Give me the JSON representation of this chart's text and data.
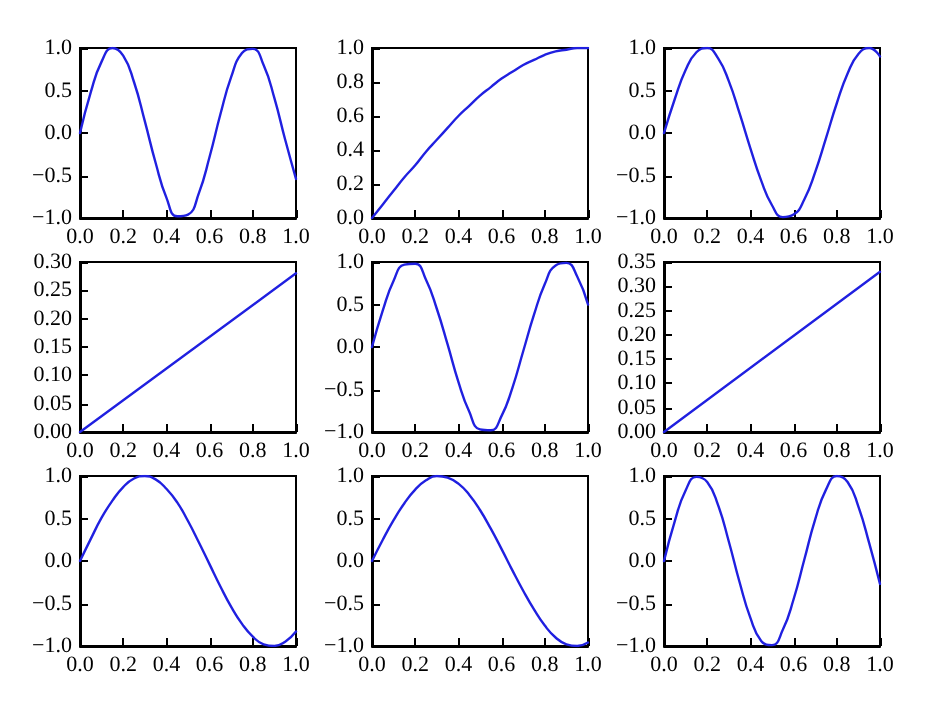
{
  "chart_data": [
    {
      "type": "line",
      "x": [
        0,
        0.05,
        0.1,
        0.15,
        0.2,
        0.25,
        0.3,
        0.35,
        0.4,
        0.45,
        0.5,
        0.55,
        0.6,
        0.65,
        0.7,
        0.75,
        0.8,
        0.85,
        0.9,
        0.95,
        1.0
      ],
      "values": [
        0,
        0.48,
        0.84,
        1.0,
        0.91,
        0.6,
        0.14,
        -0.35,
        -0.76,
        -0.98,
        -0.96,
        -0.71,
        -0.28,
        0.22,
        0.66,
        0.94,
        0.99,
        0.8,
        0.41,
        -0.08,
        -0.54
      ],
      "color": "#2020e0",
      "xlim": [
        0,
        1
      ],
      "ylim": [
        -1,
        1
      ],
      "xticks": [
        {
          "value": 0,
          "label": "0.0"
        },
        {
          "value": 0.2,
          "label": "0.2"
        },
        {
          "value": 0.4,
          "label": "0.4"
        },
        {
          "value": 0.6,
          "label": "0.6"
        },
        {
          "value": 0.8,
          "label": "0.8"
        },
        {
          "value": 1,
          "label": "1.0"
        }
      ],
      "yticks": [
        {
          "value": -1,
          "label": "−1.0"
        },
        {
          "value": -0.5,
          "label": "−0.5"
        },
        {
          "value": 0,
          "label": "0.0"
        },
        {
          "value": 0.5,
          "label": "0.5"
        },
        {
          "value": 1,
          "label": "1.0"
        }
      ],
      "grid": false
    },
    {
      "type": "line",
      "x": [
        0,
        0.05,
        0.1,
        0.15,
        0.2,
        0.25,
        0.3,
        0.35,
        0.4,
        0.45,
        0.5,
        0.55,
        0.6,
        0.65,
        0.7,
        0.75,
        0.8,
        0.85,
        0.9,
        0.95,
        1.0
      ],
      "values": [
        0,
        0.08,
        0.16,
        0.24,
        0.31,
        0.39,
        0.46,
        0.53,
        0.6,
        0.66,
        0.72,
        0.77,
        0.82,
        0.86,
        0.9,
        0.93,
        0.96,
        0.98,
        0.99,
        1.0,
        1.0
      ],
      "color": "#2020e0",
      "xlim": [
        0,
        1
      ],
      "ylim": [
        0,
        1
      ],
      "xticks": [
        {
          "value": 0,
          "label": "0.0"
        },
        {
          "value": 0.2,
          "label": "0.2"
        },
        {
          "value": 0.4,
          "label": "0.4"
        },
        {
          "value": 0.6,
          "label": "0.6"
        },
        {
          "value": 0.8,
          "label": "0.8"
        },
        {
          "value": 1,
          "label": "1.0"
        }
      ],
      "yticks": [
        {
          "value": 0,
          "label": "0.0"
        },
        {
          "value": 0.2,
          "label": "0.2"
        },
        {
          "value": 0.4,
          "label": "0.4"
        },
        {
          "value": 0.6,
          "label": "0.6"
        },
        {
          "value": 0.8,
          "label": "0.8"
        },
        {
          "value": 1,
          "label": "1.0"
        }
      ],
      "grid": false
    },
    {
      "type": "line",
      "x": [
        0,
        0.05,
        0.1,
        0.15,
        0.2,
        0.25,
        0.3,
        0.35,
        0.4,
        0.45,
        0.5,
        0.55,
        0.6,
        0.65,
        0.7,
        0.75,
        0.8,
        0.85,
        0.9,
        0.95,
        1.0
      ],
      "values": [
        0,
        0.4,
        0.74,
        0.95,
        1.0,
        0.88,
        0.61,
        0.23,
        -0.18,
        -0.56,
        -0.85,
        -0.99,
        -0.96,
        -0.78,
        -0.46,
        -0.06,
        0.35,
        0.7,
        0.93,
        1.0,
        0.9
      ],
      "color": "#2020e0",
      "xlim": [
        0,
        1
      ],
      "ylim": [
        -1,
        1
      ],
      "xticks": [
        {
          "value": 0,
          "label": "0.0"
        },
        {
          "value": 0.2,
          "label": "0.2"
        },
        {
          "value": 0.4,
          "label": "0.4"
        },
        {
          "value": 0.6,
          "label": "0.6"
        },
        {
          "value": 0.8,
          "label": "0.8"
        },
        {
          "value": 1,
          "label": "1.0"
        }
      ],
      "yticks": [
        {
          "value": -1,
          "label": "−1.0"
        },
        {
          "value": -0.5,
          "label": "−0.5"
        },
        {
          "value": 0,
          "label": "0.0"
        },
        {
          "value": 0.5,
          "label": "0.5"
        },
        {
          "value": 1,
          "label": "1.0"
        }
      ],
      "grid": false
    },
    {
      "type": "line",
      "x": [
        0,
        1
      ],
      "values": [
        0,
        0.28
      ],
      "color": "#2020e0",
      "xlim": [
        0,
        1
      ],
      "ylim": [
        0,
        0.3
      ],
      "xticks": [
        {
          "value": 0,
          "label": "0.0"
        },
        {
          "value": 0.2,
          "label": "0.2"
        },
        {
          "value": 0.4,
          "label": "0.4"
        },
        {
          "value": 0.6,
          "label": "0.6"
        },
        {
          "value": 0.8,
          "label": "0.8"
        },
        {
          "value": 1,
          "label": "1.0"
        }
      ],
      "yticks": [
        {
          "value": 0,
          "label": "0.00"
        },
        0.05,
        {
          "value": 0.1,
          "label": "0.10"
        },
        0.15,
        {
          "value": 0.2,
          "label": "0.20"
        },
        0.25,
        {
          "value": 0.3,
          "label": "0.30"
        }
      ],
      "grid": false
    },
    {
      "type": "line",
      "x": [
        0,
        0.05,
        0.1,
        0.15,
        0.2,
        0.25,
        0.3,
        0.35,
        0.4,
        0.45,
        0.5,
        0.55,
        0.6,
        0.65,
        0.7,
        0.75,
        0.8,
        0.85,
        0.9,
        0.95,
        1.0
      ],
      "values": [
        0,
        0.43,
        0.78,
        0.97,
        0.98,
        0.79,
        0.45,
        0.03,
        -0.41,
        -0.76,
        -0.97,
        -0.98,
        -0.81,
        -0.48,
        -0.05,
        0.38,
        0.74,
        0.96,
        0.99,
        0.83,
        0.5
      ],
      "color": "#2020e0",
      "xlim": [
        0,
        1
      ],
      "ylim": [
        -1,
        1
      ],
      "xticks": [
        {
          "value": 0,
          "label": "0.0"
        },
        {
          "value": 0.2,
          "label": "0.2"
        },
        {
          "value": 0.4,
          "label": "0.4"
        },
        {
          "value": 0.6,
          "label": "0.6"
        },
        {
          "value": 0.8,
          "label": "0.8"
        },
        {
          "value": 1,
          "label": "1.0"
        }
      ],
      "yticks": [
        {
          "value": -1,
          "label": "−1.0"
        },
        {
          "value": -0.5,
          "label": "−0.5"
        },
        {
          "value": 0,
          "label": "0.0"
        },
        {
          "value": 0.5,
          "label": "0.5"
        },
        {
          "value": 1,
          "label": "1.0"
        }
      ],
      "grid": false
    },
    {
      "type": "line",
      "x": [
        0,
        1
      ],
      "values": [
        0,
        0.33
      ],
      "color": "#2020e0",
      "xlim": [
        0,
        1
      ],
      "ylim": [
        0,
        0.35
      ],
      "xticks": [
        {
          "value": 0,
          "label": "0.0"
        },
        {
          "value": 0.2,
          "label": "0.2"
        },
        {
          "value": 0.4,
          "label": "0.4"
        },
        {
          "value": 0.6,
          "label": "0.6"
        },
        {
          "value": 0.8,
          "label": "0.8"
        },
        {
          "value": 1,
          "label": "1.0"
        }
      ],
      "yticks": [
        {
          "value": 0,
          "label": "0.00"
        },
        0.05,
        {
          "value": 0.1,
          "label": "0.10"
        },
        0.15,
        {
          "value": 0.2,
          "label": "0.20"
        },
        0.25,
        {
          "value": 0.3,
          "label": "0.30"
        },
        0.35
      ],
      "grid": false
    },
    {
      "type": "line",
      "x": [
        0,
        0.05,
        0.1,
        0.15,
        0.2,
        0.25,
        0.3,
        0.35,
        0.4,
        0.45,
        0.5,
        0.55,
        0.6,
        0.65,
        0.7,
        0.75,
        0.8,
        0.85,
        0.9,
        0.95,
        1.0
      ],
      "values": [
        0,
        0.26,
        0.51,
        0.71,
        0.87,
        0.97,
        1.0,
        0.96,
        0.85,
        0.69,
        0.47,
        0.22,
        -0.04,
        -0.3,
        -0.54,
        -0.74,
        -0.89,
        -0.98,
        -1.0,
        -0.95,
        -0.83
      ],
      "color": "#2020e0",
      "xlim": [
        0,
        1
      ],
      "ylim": [
        -1,
        1
      ],
      "xticks": [
        {
          "value": 0,
          "label": "0.0"
        },
        {
          "value": 0.2,
          "label": "0.2"
        },
        {
          "value": 0.4,
          "label": "0.4"
        },
        {
          "value": 0.6,
          "label": "0.6"
        },
        {
          "value": 0.8,
          "label": "0.8"
        },
        {
          "value": 1,
          "label": "1.0"
        }
      ],
      "yticks": [
        {
          "value": -1,
          "label": "−1.0"
        },
        {
          "value": -0.5,
          "label": "−0.5"
        },
        {
          "value": 0,
          "label": "0.0"
        },
        {
          "value": 0.5,
          "label": "0.5"
        },
        {
          "value": 1,
          "label": "1.0"
        }
      ],
      "grid": false
    },
    {
      "type": "line",
      "x": [
        0,
        0.05,
        0.1,
        0.15,
        0.2,
        0.25,
        0.3,
        0.35,
        0.4,
        0.45,
        0.5,
        0.55,
        0.6,
        0.65,
        0.7,
        0.75,
        0.8,
        0.85,
        0.9,
        0.95,
        1.0
      ],
      "values": [
        0,
        0.25,
        0.48,
        0.68,
        0.84,
        0.95,
        1.0,
        0.98,
        0.91,
        0.78,
        0.6,
        0.38,
        0.14,
        -0.11,
        -0.35,
        -0.57,
        -0.76,
        -0.9,
        -0.98,
        -1.0,
        -0.96
      ],
      "color": "#2020e0",
      "xlim": [
        0,
        1
      ],
      "ylim": [
        -1,
        1
      ],
      "xticks": [
        {
          "value": 0,
          "label": "0.0"
        },
        {
          "value": 0.2,
          "label": "0.2"
        },
        {
          "value": 0.4,
          "label": "0.4"
        },
        {
          "value": 0.6,
          "label": "0.6"
        },
        {
          "value": 0.8,
          "label": "0.8"
        },
        {
          "value": 1,
          "label": "1.0"
        }
      ],
      "yticks": [
        {
          "value": -1,
          "label": "−1.0"
        },
        {
          "value": -0.5,
          "label": "−0.5"
        },
        {
          "value": 0,
          "label": "0.0"
        },
        {
          "value": 0.5,
          "label": "0.5"
        },
        {
          "value": 1,
          "label": "1.0"
        }
      ],
      "grid": false
    },
    {
      "type": "line",
      "x": [
        0,
        0.05,
        0.1,
        0.15,
        0.2,
        0.25,
        0.3,
        0.35,
        0.4,
        0.45,
        0.5,
        0.55,
        0.6,
        0.65,
        0.7,
        0.75,
        0.8,
        0.85,
        0.9,
        0.95,
        1.0
      ],
      "values": [
        0,
        0.47,
        0.83,
        0.99,
        0.93,
        0.66,
        0.23,
        -0.25,
        -0.67,
        -0.94,
        -0.99,
        -0.81,
        -0.45,
        0.02,
        0.49,
        0.84,
        1.0,
        0.93,
        0.64,
        0.21,
        -0.27
      ],
      "color": "#2020e0",
      "xlim": [
        0,
        1
      ],
      "ylim": [
        -1,
        1
      ],
      "xticks": [
        {
          "value": 0,
          "label": "0.0"
        },
        {
          "value": 0.2,
          "label": "0.2"
        },
        {
          "value": 0.4,
          "label": "0.4"
        },
        {
          "value": 0.6,
          "label": "0.6"
        },
        {
          "value": 0.8,
          "label": "0.8"
        },
        {
          "value": 1,
          "label": "1.0"
        }
      ],
      "yticks": [
        {
          "value": -1,
          "label": "−1.0"
        },
        {
          "value": -0.5,
          "label": "−0.5"
        },
        {
          "value": 0,
          "label": "0.0"
        },
        {
          "value": 0.5,
          "label": "0.5"
        },
        {
          "value": 1,
          "label": "1.0"
        }
      ],
      "grid": false
    }
  ]
}
